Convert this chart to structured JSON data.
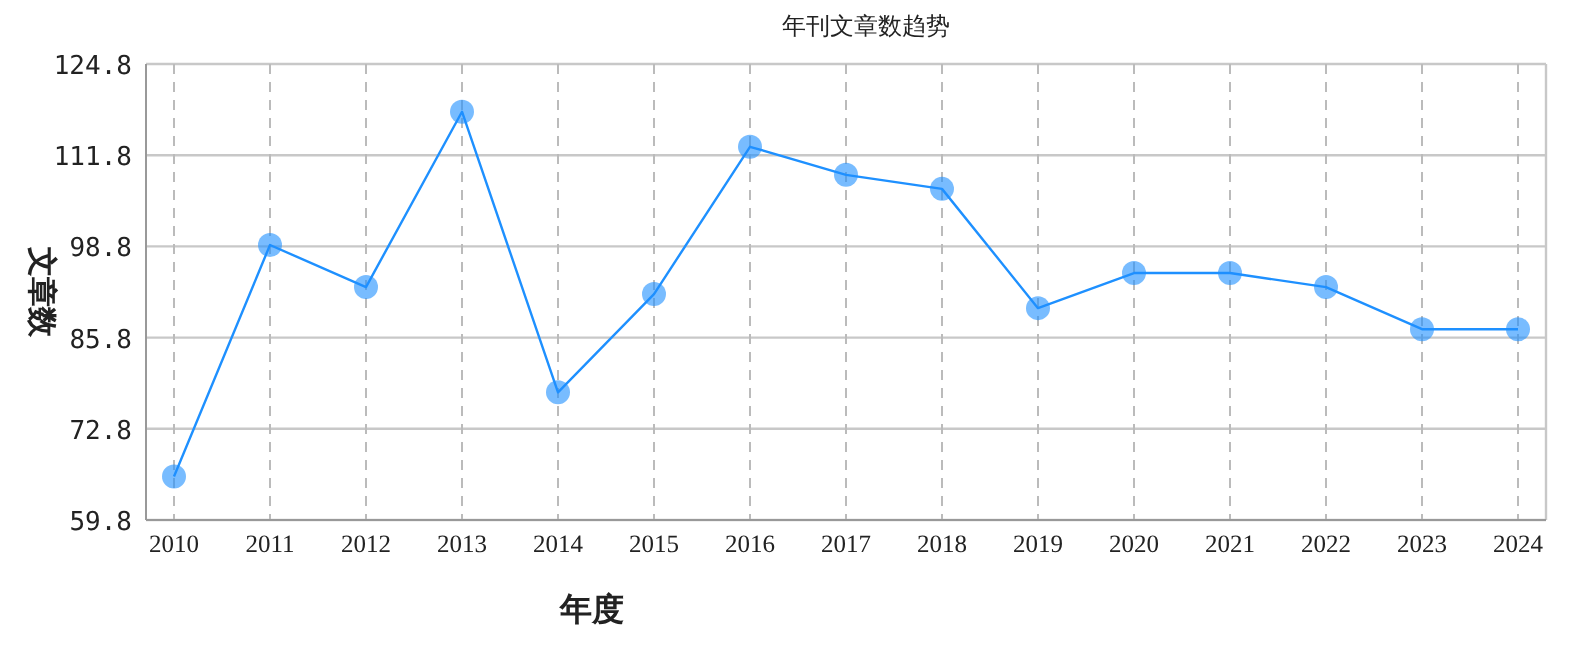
{
  "chart_data": {
    "type": "line",
    "title": "年刊文章数趋势",
    "xlabel": "年度",
    "ylabel": "文章数",
    "categories": [
      "2010",
      "2011",
      "2012",
      "2013",
      "2014",
      "2015",
      "2016",
      "2017",
      "2018",
      "2019",
      "2020",
      "2021",
      "2022",
      "2023",
      "2024"
    ],
    "series": [
      {
        "color": "#1e90ff",
        "values": [
          66,
          99,
          93,
          118,
          78,
          92,
          113,
          109,
          107,
          90,
          95,
          95,
          93,
          87,
          87
        ]
      }
    ],
    "ylim": [
      59.8,
      124.8
    ],
    "yticks": [
      59.8,
      72.8,
      85.8,
      98.8,
      111.8,
      124.8
    ],
    "grid": true,
    "marker": "circle"
  }
}
